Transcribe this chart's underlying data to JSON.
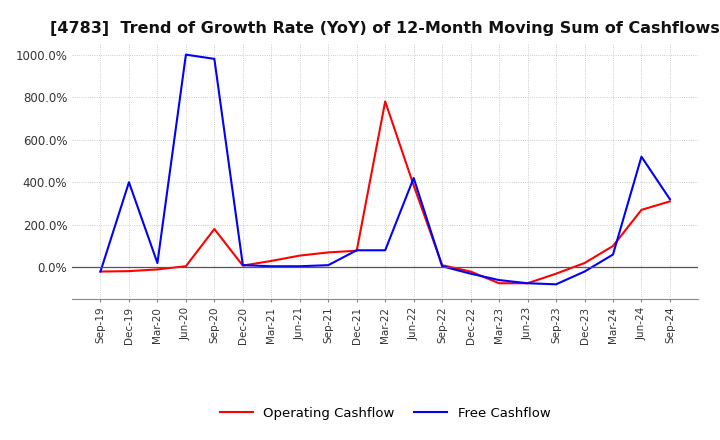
{
  "title": "[4783]  Trend of Growth Rate (YoY) of 12-Month Moving Sum of Cashflows",
  "title_fontsize": 11.5,
  "ylim": [
    -150,
    1050
  ],
  "yticks": [
    0,
    200,
    400,
    600,
    800,
    1000
  ],
  "ytick_labels": [
    "0.0%",
    "200.0%",
    "400.0%",
    "600.0%",
    "800.0%",
    "1000.0%"
  ],
  "background_color": "#ffffff",
  "grid_color": "#bbbbbb",
  "operating_color": "#ff0000",
  "free_color": "#0000ff",
  "x_labels": [
    "Sep-19",
    "Dec-19",
    "Mar-20",
    "Jun-20",
    "Sep-20",
    "Dec-20",
    "Mar-21",
    "Jun-21",
    "Sep-21",
    "Dec-21",
    "Mar-22",
    "Jun-22",
    "Sep-22",
    "Dec-22",
    "Mar-23",
    "Jun-23",
    "Sep-23",
    "Dec-23",
    "Mar-24",
    "Jun-24",
    "Sep-24"
  ],
  "operating_cashflow": [
    -20,
    -18,
    -10,
    5,
    180,
    8,
    30,
    55,
    70,
    78,
    780,
    385,
    10,
    -20,
    -75,
    -75,
    -30,
    20,
    100,
    270,
    310
  ],
  "free_cashflow": [
    -20,
    400,
    20,
    1000,
    980,
    10,
    5,
    5,
    10,
    80,
    80,
    420,
    5,
    -30,
    -60,
    -75,
    -80,
    -20,
    60,
    520,
    320
  ]
}
